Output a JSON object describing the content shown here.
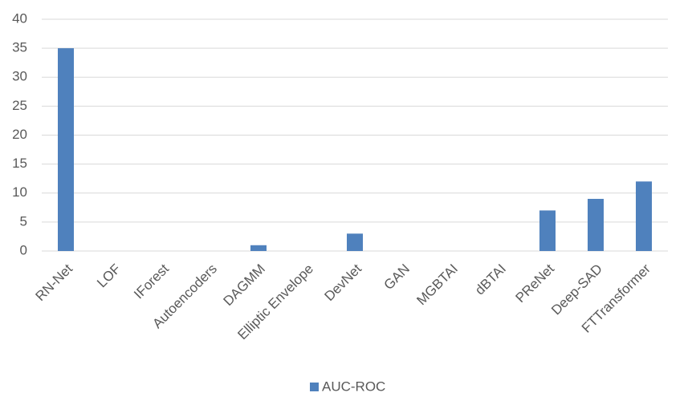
{
  "chart_data": {
    "type": "bar",
    "categories": [
      "RN-Net",
      "LOF",
      "IForest",
      "Autoencoders",
      "DAGMM",
      "Elliptic Envelope",
      "DevNet",
      "GAN",
      "MGBTAI",
      "dBTAI",
      "PReNet",
      "Deep-SAD",
      "FTTransformer"
    ],
    "series": [
      {
        "name": "AUC-ROC",
        "color": "#4f81bd",
        "values": [
          35,
          0,
          0,
          0,
          1,
          0,
          3,
          0,
          0,
          0,
          7,
          9,
          12
        ]
      }
    ],
    "ylim": [
      0,
      40
    ],
    "yticks": [
      0,
      5,
      10,
      15,
      20,
      25,
      30,
      35,
      40
    ],
    "grid": true,
    "legend": "bottom"
  }
}
